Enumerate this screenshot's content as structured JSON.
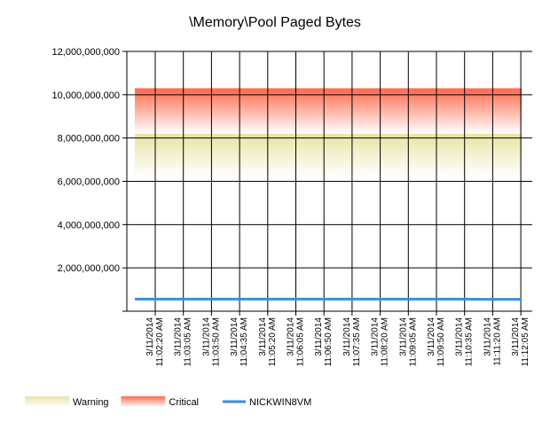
{
  "chart_data": {
    "type": "line",
    "title": "\\Memory\\Pool Paged Bytes",
    "xlabel": "",
    "ylabel": "",
    "ylim": [
      0,
      12000000000
    ],
    "y_ticks": [
      "2,000,000,000",
      "4,000,000,000",
      "6,000,000,000",
      "8,000,000,000",
      "10,000,000,000",
      "12,000,000,000"
    ],
    "y_tick_values": [
      2000000000,
      4000000000,
      6000000000,
      8000000000,
      10000000000,
      12000000000
    ],
    "categories": [
      {
        "date": "3/11/2014",
        "time": "11:02:20 AM"
      },
      {
        "date": "3/11/2014",
        "time": "11:03:05 AM"
      },
      {
        "date": "3/11/2014",
        "time": "11:03:50 AM"
      },
      {
        "date": "3/11/2014",
        "time": "11:04:35 AM"
      },
      {
        "date": "3/11/2014",
        "time": "11:05:20 AM"
      },
      {
        "date": "3/11/2014",
        "time": "11:06:05 AM"
      },
      {
        "date": "3/11/2014",
        "time": "11:06:50 AM"
      },
      {
        "date": "3/11/2014",
        "time": "11:07:35 AM"
      },
      {
        "date": "3/11/2014",
        "time": "11:08:20 AM"
      },
      {
        "date": "3/11/2014",
        "time": "11:09:05 AM"
      },
      {
        "date": "3/11/2014",
        "time": "11:09:50 AM"
      },
      {
        "date": "3/11/2014",
        "time": "11:10:35 AM"
      },
      {
        "date": "3/11/2014",
        "time": "11:11:20 AM"
      },
      {
        "date": "3/11/2014",
        "time": "11:12:05 AM"
      }
    ],
    "bands": [
      {
        "name": "Warning",
        "top": 8200000000,
        "bottom": 6200000000,
        "color_top": "#e8e4a2",
        "color_bottom": "#ffffff"
      },
      {
        "name": "Critical",
        "top": 10300000000,
        "bottom": 8200000000,
        "color_top": "#ff6a4d",
        "color_bottom": "#ffffff"
      }
    ],
    "series": [
      {
        "name": "NICKWIN8VM",
        "color": "#3b8ee0",
        "values": [
          560000000,
          560000000,
          560000000,
          560000000,
          560000000,
          560000000,
          560000000,
          560000000,
          560000000,
          560000000,
          560000000,
          560000000,
          550000000,
          550000000
        ]
      }
    ],
    "grid": true,
    "legend_position": "bottom-left"
  }
}
